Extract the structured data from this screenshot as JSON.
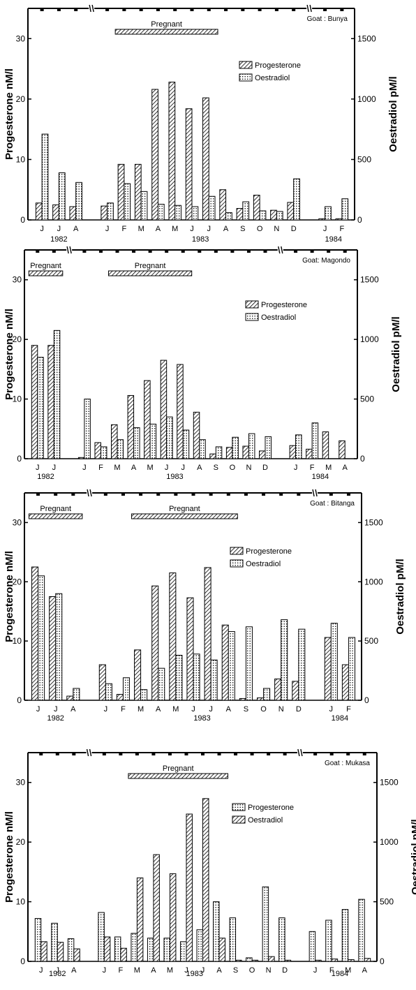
{
  "figure": {
    "left_axis_label": "Progesterone nM/l",
    "right_axis_label": "Oestradiol pM/l",
    "left_ticks": [
      "0",
      "10",
      "20",
      "30"
    ],
    "right_ticks": [
      "0",
      "500",
      "1000",
      "1500"
    ]
  },
  "colors": {
    "ink": "#000000",
    "background": "#ffffff"
  },
  "chart_data": [
    {
      "type": "bar",
      "goat": "Goat : Bunya",
      "legend": [
        {
          "label": "Progesterone",
          "pattern": "hatch"
        },
        {
          "label": "Oestradiol",
          "pattern": "dots"
        }
      ],
      "categories": [
        "J",
        "J",
        "A",
        "J",
        "F",
        "M",
        "A",
        "M",
        "J",
        "J",
        "A",
        "S",
        "O",
        "N",
        "D",
        "J",
        "F"
      ],
      "years": [
        {
          "label": "1982",
          "from": 0,
          "to": 2
        },
        {
          "label": "1983",
          "from": 3,
          "to": 14
        },
        {
          "label": "1984",
          "from": 15,
          "to": 16
        }
      ],
      "gaps_after": [
        2,
        14
      ],
      "pregnant": [
        {
          "label": "Pregnant",
          "from": 4,
          "to": 9
        }
      ],
      "series": [
        {
          "name": "Progesterone",
          "axis": "left",
          "values": [
            2.8,
            2.5,
            2.2,
            2.3,
            9.2,
            9.2,
            21.6,
            22.8,
            18.4,
            20.2,
            5.0,
            1.9,
            4.1,
            1.6,
            2.9,
            0.2,
            0.2
          ]
        },
        {
          "name": "Oestradiol",
          "axis": "right",
          "values": [
            710,
            390,
            310,
            140,
            300,
            235,
            130,
            120,
            110,
            195,
            60,
            150,
            75,
            70,
            340,
            110,
            175
          ]
        }
      ],
      "ylim_left": [
        0,
        35
      ],
      "ylim_right": [
        0,
        1750
      ]
    },
    {
      "type": "bar",
      "goat": "Goat: Magondo",
      "legend": [
        {
          "label": "Progesterone",
          "pattern": "hatch"
        },
        {
          "label": "Oestradiol",
          "pattern": "dots"
        }
      ],
      "categories": [
        "J",
        "J",
        "J",
        "F",
        "M",
        "A",
        "M",
        "J",
        "J",
        "A",
        "S",
        "O",
        "N",
        "D",
        "J",
        "F",
        "M",
        "A"
      ],
      "years": [
        {
          "label": "1982",
          "from": 0,
          "to": 1
        },
        {
          "label": "1983",
          "from": 2,
          "to": 13
        },
        {
          "label": "1984",
          "from": 14,
          "to": 17
        }
      ],
      "gaps_after": [
        1,
        13
      ],
      "pregnant": [
        {
          "label": "Pregnant",
          "from": 0,
          "to": 1
        },
        {
          "label": "Pregnant",
          "from": 4,
          "to": 8
        }
      ],
      "series": [
        {
          "name": "Progesterone",
          "axis": "left",
          "values": [
            19.0,
            19.0,
            0.2,
            2.7,
            5.7,
            10.6,
            13.1,
            16.5,
            15.8,
            7.8,
            0.8,
            1.9,
            2.1,
            1.3,
            2.2,
            1.6,
            4.5,
            3.0
          ]
        },
        {
          "name": "Oestradiol",
          "axis": "right",
          "values": [
            850,
            1075,
            500,
            100,
            160,
            260,
            290,
            350,
            240,
            160,
            100,
            180,
            210,
            185,
            200,
            300,
            0,
            0
          ]
        }
      ],
      "ylim_left": [
        0,
        35
      ],
      "ylim_right": [
        0,
        1750
      ]
    },
    {
      "type": "bar",
      "goat": "Goat : Bitanga",
      "legend": [
        {
          "label": "Progesterone",
          "pattern": "hatch"
        },
        {
          "label": "Oestradiol",
          "pattern": "dots"
        }
      ],
      "categories": [
        "J",
        "J",
        "A",
        "J",
        "F",
        "M",
        "A",
        "M",
        "J",
        "J",
        "A",
        "S",
        "O",
        "N",
        "D",
        "J",
        "F"
      ],
      "years": [
        {
          "label": "1982",
          "from": 0,
          "to": 2
        },
        {
          "label": "1983",
          "from": 3,
          "to": 14
        },
        {
          "label": "1984",
          "from": 15,
          "to": 16
        }
      ],
      "gaps_after": [
        2,
        14
      ],
      "pregnant": [
        {
          "label": "Pregnant",
          "from": 0,
          "to": 2
        },
        {
          "label": "Pregnant",
          "from": 5,
          "to": 10
        }
      ],
      "series": [
        {
          "name": "Progesterone",
          "axis": "left",
          "values": [
            22.5,
            17.5,
            0.7,
            6.0,
            1.0,
            8.5,
            19.3,
            21.5,
            17.3,
            22.4,
            12.7,
            0.3,
            0.4,
            3.6,
            3.2,
            10.6,
            6.0
          ]
        },
        {
          "name": "Oestradiol",
          "axis": "right",
          "values": [
            1050,
            900,
            100,
            140,
            190,
            90,
            270,
            380,
            390,
            340,
            580,
            620,
            100,
            680,
            600,
            650,
            530
          ]
        }
      ],
      "ylim_left": [
        0,
        35
      ],
      "ylim_right": [
        0,
        1750
      ]
    },
    {
      "type": "bar",
      "goat": "Goat : Mukasa",
      "legend": [
        {
          "label": "Progesterone",
          "pattern": "dots"
        },
        {
          "label": "Oestradiol",
          "pattern": "hatch"
        }
      ],
      "categories": [
        "J",
        "J",
        "A",
        "J",
        "F",
        "M",
        "A",
        "M",
        "J",
        "J",
        "A",
        "S",
        "O",
        "N",
        "D",
        "J",
        "F",
        "M",
        "A"
      ],
      "years": [
        {
          "label": "1982",
          "from": 0,
          "to": 2
        },
        {
          "label": "1983",
          "from": 3,
          "to": 14
        },
        {
          "label": "1984",
          "from": 15,
          "to": 18
        }
      ],
      "gaps_after": [
        2,
        14
      ],
      "pregnant": [
        {
          "label": "Pregnant",
          "from": 5,
          "to": 10
        }
      ],
      "series": [
        {
          "name": "Progesterone",
          "axis": "left",
          "values": [
            7.2,
            6.4,
            3.8,
            8.2,
            4.1,
            4.7,
            3.9,
            3.9,
            3.3,
            5.3,
            10.0,
            7.3,
            0.6,
            12.5,
            7.3,
            5.0,
            6.9,
            8.7,
            10.4
          ]
        },
        {
          "name": "Oestradiol",
          "axis": "right",
          "values": [
            165,
            160,
            105,
            205,
            110,
            700,
            895,
            735,
            1235,
            1365,
            195,
            10,
            10,
            40,
            10,
            10,
            20,
            15,
            25
          ]
        }
      ],
      "ylim_left": [
        0,
        35
      ],
      "ylim_right": [
        0,
        1750
      ]
    }
  ]
}
